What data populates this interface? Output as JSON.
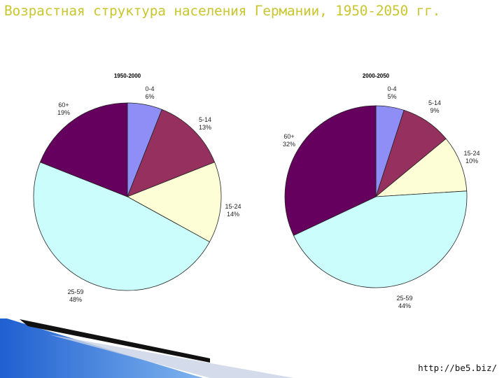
{
  "slide": {
    "title": "Возрастная структура населения Германии, 1950-2050 гг.",
    "footer": "http://be5.biz/"
  },
  "colors": {
    "title": "#c9c630",
    "slices": [
      "#8e8ef6",
      "#95305f",
      "#fdfdd6",
      "#ccfdfd",
      "#66005e"
    ]
  },
  "chart_data": [
    {
      "type": "pie",
      "title": "1950-2000",
      "slices": [
        {
          "label": "0-4",
          "pct": "6%",
          "value": 6
        },
        {
          "label": "5-14",
          "pct": "13%",
          "value": 13
        },
        {
          "label": "15-24",
          "pct": "14%",
          "value": 14
        },
        {
          "label": "25-59",
          "pct": "48%",
          "value": 48
        },
        {
          "label": "60+",
          "pct": "19%",
          "value": 19
        }
      ]
    },
    {
      "type": "pie",
      "title": "2000-2050",
      "slices": [
        {
          "label": "0-4",
          "pct": "5%",
          "value": 5
        },
        {
          "label": "5-14",
          "pct": "9%",
          "value": 9
        },
        {
          "label": "15-24",
          "pct": "10%",
          "value": 10
        },
        {
          "label": "25-59",
          "pct": "44%",
          "value": 44
        },
        {
          "label": "60+",
          "pct": "32%",
          "value": 32
        }
      ]
    }
  ]
}
